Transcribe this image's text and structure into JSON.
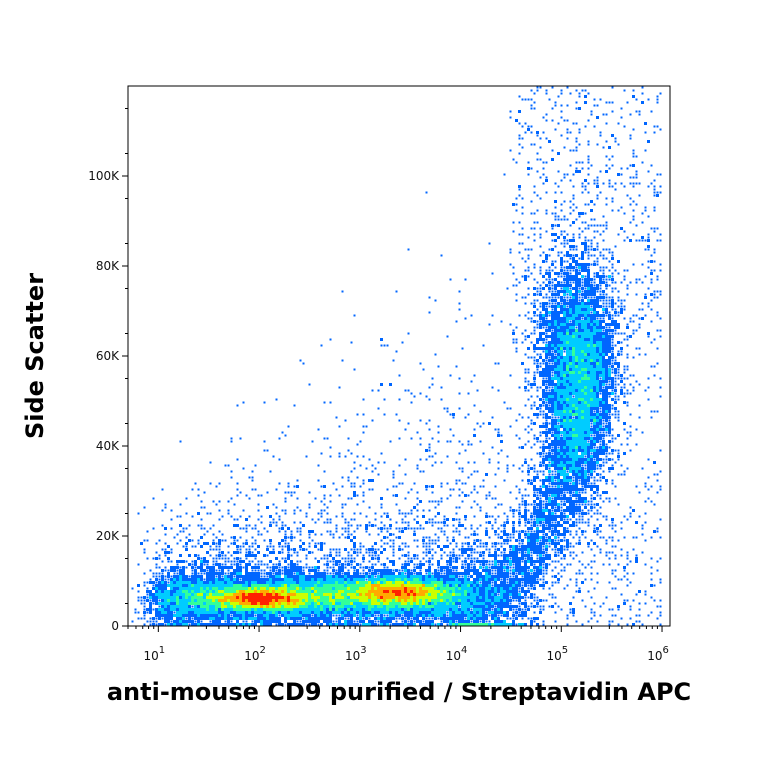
{
  "chart_data": {
    "type": "scatter",
    "style": "flow-cytometry pseudocolor density plot",
    "xlabel": "anti-mouse CD9 purified / Streptavidin APC",
    "ylabel": "Side Scatter",
    "x_scale": "log",
    "xlim": [
      5,
      1200000
    ],
    "ylim": [
      0,
      120000
    ],
    "x_ticks": [
      {
        "value": 10,
        "label": "10",
        "exp": "1"
      },
      {
        "value": 100,
        "label": "10",
        "exp": "2"
      },
      {
        "value": 1000,
        "label": "10",
        "exp": "3"
      },
      {
        "value": 10000,
        "label": "10",
        "exp": "4"
      },
      {
        "value": 100000,
        "label": "10",
        "exp": "5"
      },
      {
        "value": 1000000,
        "label": "10",
        "exp": "6"
      }
    ],
    "y_ticks": [
      {
        "value": 0,
        "label": "0"
      },
      {
        "value": 20000,
        "label": "20K"
      },
      {
        "value": 40000,
        "label": "40K"
      },
      {
        "value": 60000,
        "label": "60K"
      },
      {
        "value": 80000,
        "label": "80K"
      },
      {
        "value": 100000,
        "label": "100K"
      }
    ],
    "grid": false,
    "density_colors": [
      "#0000cc",
      "#0066ff",
      "#00ccff",
      "#33ff99",
      "#ccff00",
      "#ffaa00",
      "#ff2200"
    ],
    "populations": [
      {
        "x_center": 150,
        "x_spread_log10": 0.55,
        "y_center": 5500,
        "y_spread": 3500,
        "density": "high"
      },
      {
        "x_center": 2500,
        "x_spread_log10": 0.4,
        "y_center": 7000,
        "y_spread": 4000,
        "density": "high"
      },
      {
        "x_center": 150000,
        "x_spread_log10": 0.2,
        "y_center": 55000,
        "y_spread": 14000,
        "density": "medium"
      }
    ]
  }
}
